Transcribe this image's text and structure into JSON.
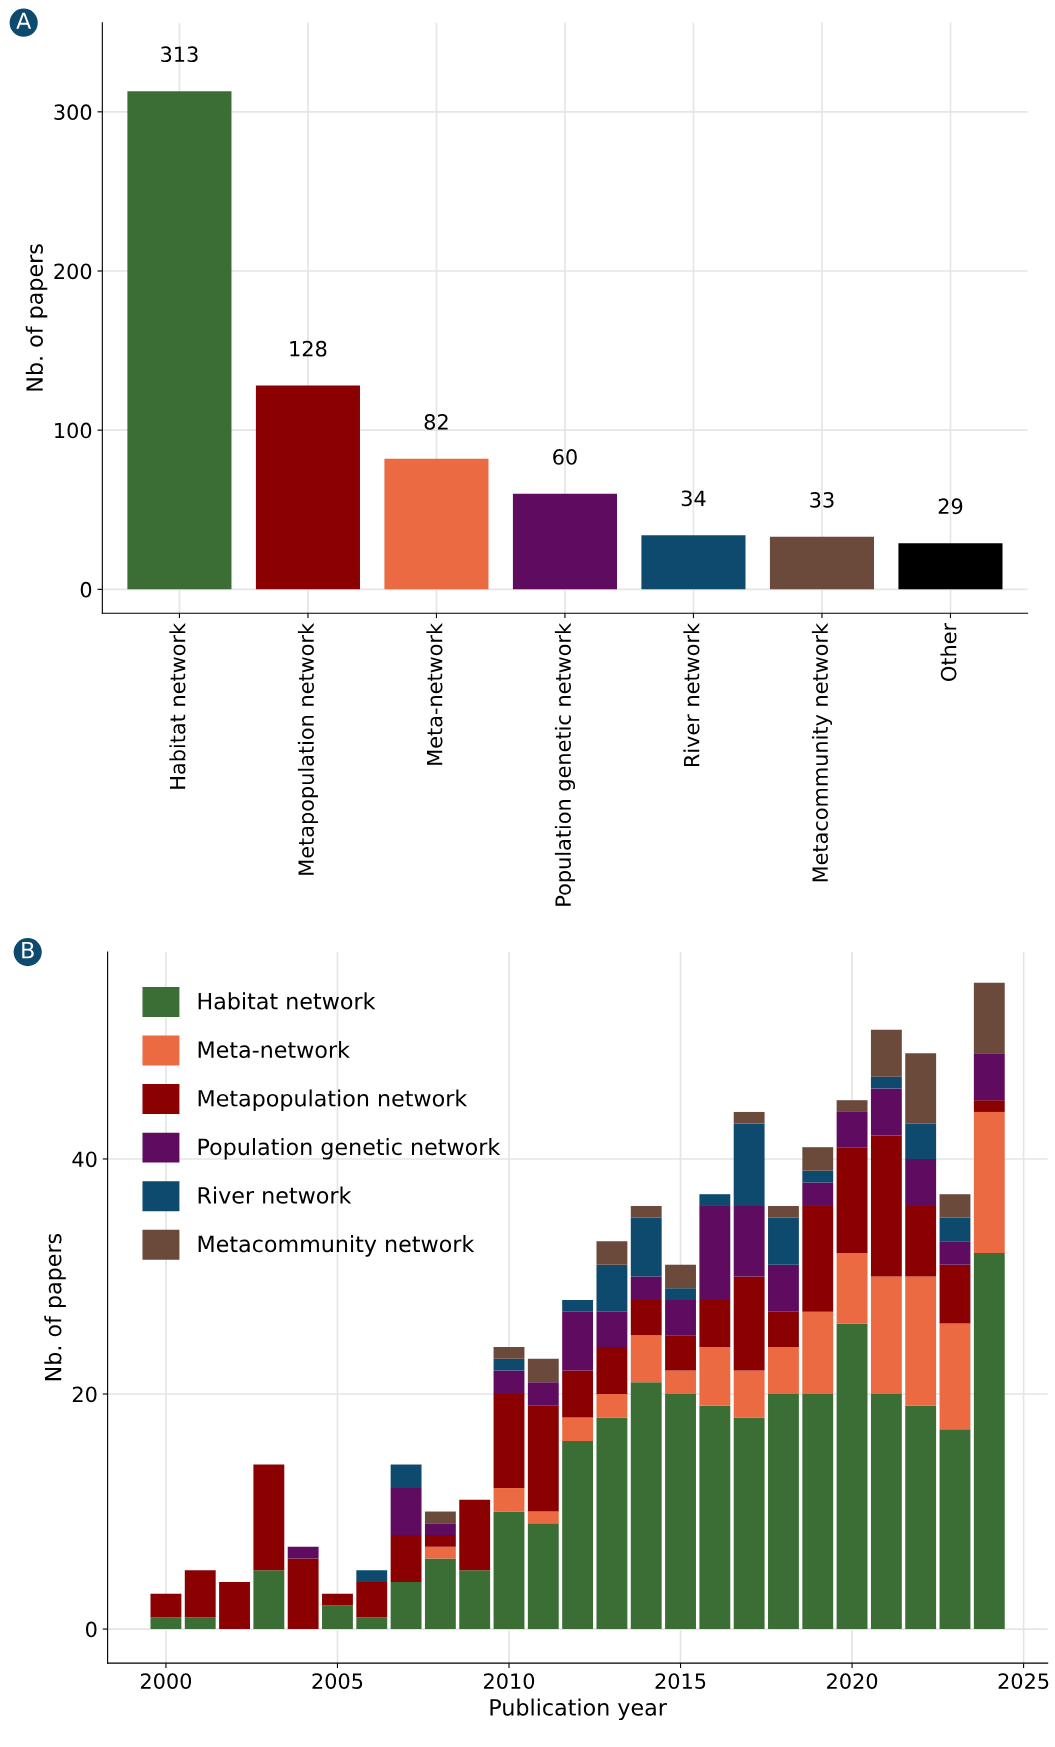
{
  "chart_data": [
    {
      "type": "bar",
      "ylabel": "Nb. of papers",
      "annotations": [
        "A"
      ],
      "categories": [
        "Habitat network",
        "Metapopulation network",
        "Meta-network",
        "Population genetic network",
        "River network",
        "Metacommunity network",
        "Other"
      ],
      "values": [
        313,
        128,
        82,
        60,
        34,
        33,
        29
      ],
      "colors": [
        "#3b6e35",
        "#8b0000",
        "#ec6a42",
        "#5f0b5f",
        "#0e4a6e",
        "#6b4a3b",
        "#000000"
      ],
      "ylim": [
        -15,
        356
      ],
      "yticks": [
        0,
        100,
        200,
        300
      ],
      "grid": true,
      "data_labels": true
    },
    {
      "type": "bar",
      "stacked": true,
      "xlabel": "Publication year",
      "ylabel": "Nb. of papers",
      "annotations": [
        "B"
      ],
      "x": [
        2000,
        2001,
        2002,
        2003,
        2004,
        2005,
        2006,
        2007,
        2008,
        2009,
        2010,
        2011,
        2012,
        2013,
        2014,
        2015,
        2016,
        2017,
        2018,
        2019,
        2020,
        2021,
        2022,
        2023,
        2024
      ],
      "series": [
        {
          "name": "Habitat network",
          "color": "#3b6e35",
          "values": [
            1,
            1,
            0,
            5,
            0,
            2,
            1,
            4,
            6,
            5,
            10,
            9,
            16,
            18,
            21,
            20,
            19,
            18,
            20,
            20,
            26,
            20,
            19,
            17,
            32
          ]
        },
        {
          "name": "Meta-network",
          "color": "#ec6a42",
          "values": [
            0,
            0,
            0,
            0,
            0,
            0,
            0,
            0,
            1,
            0,
            2,
            1,
            2,
            2,
            4,
            2,
            5,
            4,
            4,
            7,
            6,
            10,
            11,
            9,
            12
          ]
        },
        {
          "name": "Metapopulation network",
          "color": "#8b0000",
          "values": [
            2,
            4,
            4,
            9,
            6,
            1,
            3,
            4,
            1,
            6,
            8,
            9,
            4,
            4,
            3,
            3,
            4,
            8,
            3,
            9,
            9,
            12,
            6,
            5,
            1
          ]
        },
        {
          "name": "Population genetic network",
          "color": "#5f0b5f",
          "values": [
            0,
            0,
            0,
            0,
            1,
            0,
            0,
            4,
            1,
            0,
            2,
            2,
            5,
            3,
            2,
            3,
            8,
            6,
            4,
            2,
            3,
            4,
            4,
            2,
            4
          ]
        },
        {
          "name": "River network",
          "color": "#0e4a6e",
          "values": [
            0,
            0,
            0,
            0,
            0,
            0,
            1,
            2,
            0,
            0,
            1,
            0,
            1,
            4,
            5,
            1,
            1,
            7,
            4,
            1,
            0,
            1,
            3,
            2,
            0
          ]
        },
        {
          "name": "Metacommunity network",
          "color": "#6b4a3b",
          "values": [
            0,
            0,
            0,
            0,
            0,
            0,
            0,
            0,
            1,
            0,
            1,
            2,
            0,
            2,
            1,
            2,
            0,
            1,
            1,
            2,
            1,
            4,
            6,
            2,
            6
          ]
        }
      ],
      "xlim": [
        1998.3,
        2025.7
      ],
      "xticks": [
        2000,
        2005,
        2010,
        2015,
        2020,
        2025
      ],
      "ylim": [
        -2.9,
        57.6
      ],
      "yticks": [
        0,
        20,
        40
      ],
      "grid": true,
      "legend": "top left"
    }
  ]
}
